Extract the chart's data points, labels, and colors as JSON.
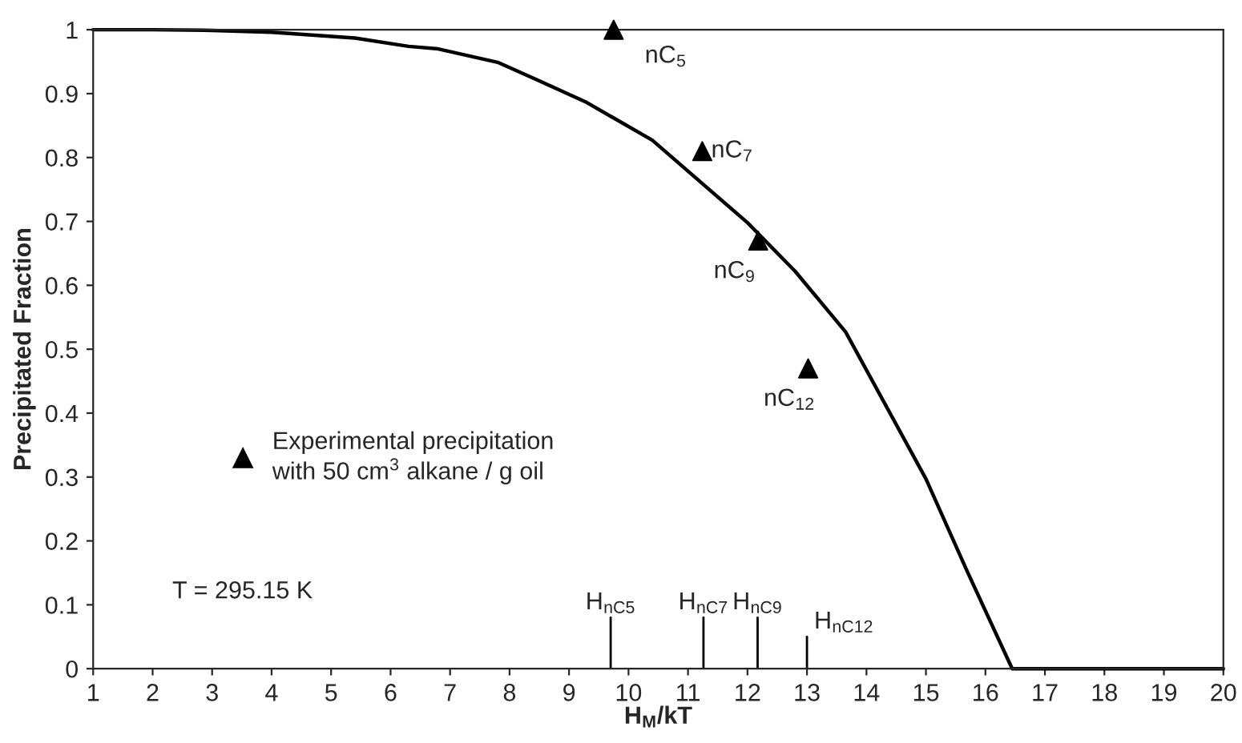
{
  "chart_data": {
    "type": "line",
    "xlabel": "H$_{M}$/kT",
    "ylabel": "Precipitated Fraction",
    "xlim": [
      1,
      20
    ],
    "ylim": [
      0,
      1
    ],
    "xticks": [
      1,
      2,
      3,
      4,
      5,
      6,
      7,
      8,
      9,
      10,
      11,
      12,
      13,
      14,
      15,
      16,
      17,
      18,
      19,
      20
    ],
    "yticks": [
      0,
      0.1,
      0.2,
      0.3,
      0.4,
      0.5,
      0.6,
      0.7,
      0.8,
      0.9,
      1
    ],
    "grid": false,
    "legend": "center left",
    "series": [
      {
        "color": "#000000",
        "marker": "none",
        "line_style": "solid",
        "x": [
          1,
          2,
          3,
          4,
          5.4,
          6.3,
          6.8,
          7.8,
          8.5,
          9.3,
          10.4,
          12.0,
          12.8,
          13.65,
          15.0,
          15.7,
          16.45,
          20
        ],
        "values": [
          1,
          1,
          0.999,
          0.996,
          0.987,
          0.974,
          0.97,
          0.949,
          0.92,
          0.886,
          0.827,
          0.698,
          0.622,
          0.527,
          0.297,
          0.151,
          0,
          0
        ]
      },
      {
        "type": "scatter",
        "name": "Experimental precipitation\nwith 50 cm$^{3}$ alkane / g oil",
        "color": "#000000",
        "marker": "triangle",
        "x": [
          9.75,
          11.24,
          12.18,
          13.02
        ],
        "values": [
          1.0,
          0.81,
          0.67,
          0.47
        ]
      }
    ],
    "annotations": [
      {
        "text": "nC$_{5}$",
        "x": 9.75,
        "y": 1.0
      },
      {
        "text": "nC$_{7}$",
        "x": 11.24,
        "y": 0.81
      },
      {
        "text": "nC$_{9}$",
        "x": 12.18,
        "y": 0.67
      },
      {
        "text": "nC$_{12}$",
        "x": 13.02,
        "y": 0.47
      },
      "T = 295.15 K"
    ],
    "ref_lines": [
      {
        "axis": "x",
        "value": 9.7,
        "label": "H$_{nC5}$"
      },
      {
        "axis": "x",
        "value": 11.26,
        "label": "H$_{nC7}$"
      },
      {
        "axis": "x",
        "value": 12.17,
        "label": "H$_{nC9}$"
      },
      {
        "axis": "x",
        "value": 13.0,
        "label": "H$_{nC12}$"
      }
    ]
  }
}
